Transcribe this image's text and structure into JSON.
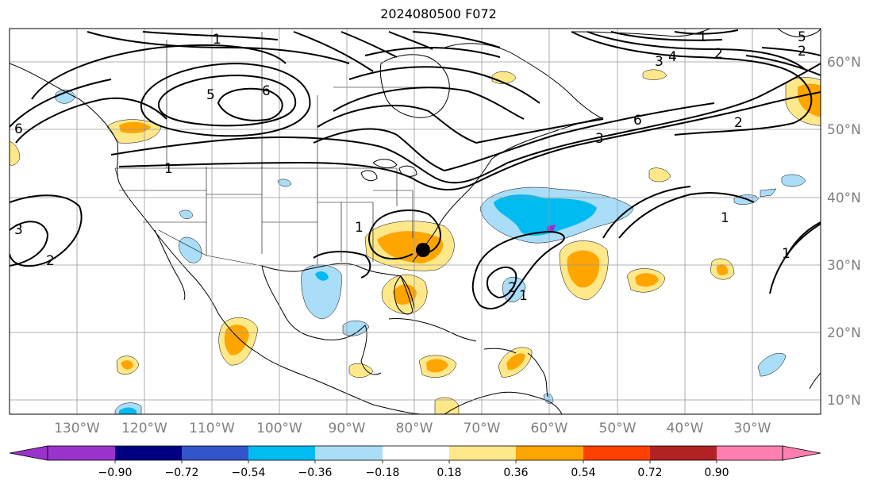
{
  "title": "2024080500 F072",
  "longitude_labels": [
    "130°W",
    "120°W",
    "110°W",
    "100°W",
    "90°W",
    "80°W",
    "70°W",
    "60°W",
    "50°W",
    "40°W",
    "30°W"
  ],
  "latitude_labels": [
    "60°N",
    "50°N",
    "40°N",
    "30°N",
    "20°N",
    "10°N"
  ],
  "colorbar": {
    "colors": [
      "#9933cc",
      "#000080",
      "#3355cc",
      "#00bbf0",
      "#aaddf8",
      "#ffffff",
      "#ffe88a",
      "#ffa500",
      "#ff4000",
      "#b22222",
      "#ff80b0"
    ],
    "tick_labels": [
      "−0.90",
      "−0.72",
      "−0.54",
      "−0.36",
      "−0.18",
      "0.18",
      "0.36",
      "0.54",
      "0.72",
      "0.90"
    ]
  },
  "contour_labels": [
    "1",
    "5",
    "6",
    "1",
    "2",
    "3",
    "4",
    "5",
    "6",
    "2",
    "3",
    "1",
    "3",
    "2",
    "1",
    "1",
    "2",
    "1",
    "1",
    "6",
    "2"
  ],
  "marker": {
    "name": "storm-center-dot",
    "lon": "79°W",
    "lat": "32°N"
  },
  "grid": "on",
  "coastline_color": "#000000",
  "contour_color": "#000000",
  "axes_label_color": "#808080"
}
